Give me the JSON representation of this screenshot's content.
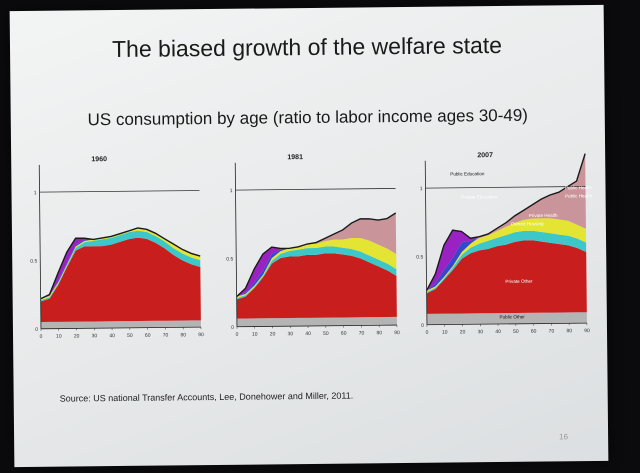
{
  "slide": {
    "title": "The biased growth of the welfare state",
    "subtitle": "US consumption by age (ratio to labor income ages 30-49)",
    "source": "Source: US national Transfer Accounts, Lee, Donehower and Miller, 2011.",
    "slide_number": "16"
  },
  "colors": {
    "public_other": "#b4b4b4",
    "private_other": "#c81e1e",
    "owned_housing": "#3ec7c9",
    "private_health": "#e4e432",
    "public_health": "#c9959a",
    "private_education": "#3448c8",
    "public_education": "#9a22c2",
    "reference_line": "#333333"
  },
  "chart_data": [
    {
      "type": "area",
      "title": "1960",
      "x": [
        0,
        5,
        10,
        15,
        20,
        25,
        30,
        35,
        40,
        45,
        50,
        55,
        60,
        65,
        70,
        75,
        80,
        85,
        90
      ],
      "xticks": [
        "0",
        "10",
        "20",
        "30",
        "40",
        "50",
        "60",
        "70",
        "80",
        "90"
      ],
      "yticks": [
        "0",
        "0.5",
        "1"
      ],
      "ylim": [
        0,
        1.2
      ],
      "reference_line": 1,
      "series": [
        {
          "key": "public_other",
          "values": [
            0.05,
            0.05,
            0.05,
            0.05,
            0.05,
            0.05,
            0.05,
            0.05,
            0.05,
            0.05,
            0.05,
            0.05,
            0.05,
            0.05,
            0.05,
            0.05,
            0.05,
            0.05,
            0.05
          ]
        },
        {
          "key": "private_other",
          "values": [
            0.15,
            0.17,
            0.27,
            0.4,
            0.52,
            0.55,
            0.55,
            0.55,
            0.56,
            0.58,
            0.6,
            0.61,
            0.6,
            0.57,
            0.53,
            0.48,
            0.44,
            0.41,
            0.39
          ]
        },
        {
          "key": "owned_housing",
          "values": [
            0.01,
            0.01,
            0.01,
            0.01,
            0.02,
            0.03,
            0.04,
            0.05,
            0.05,
            0.05,
            0.05,
            0.05,
            0.05,
            0.05,
            0.05,
            0.05,
            0.05,
            0.05,
            0.05
          ]
        },
        {
          "key": "private_health",
          "values": [
            0.01,
            0.01,
            0.01,
            0.01,
            0.01,
            0.01,
            0.01,
            0.01,
            0.01,
            0.01,
            0.01,
            0.02,
            0.02,
            0.02,
            0.02,
            0.03,
            0.03,
            0.03,
            0.03
          ]
        },
        {
          "key": "public_health",
          "values": [
            0,
            0,
            0,
            0,
            0,
            0,
            0,
            0,
            0,
            0,
            0,
            0,
            0,
            0,
            0,
            0,
            0,
            0,
            0
          ]
        },
        {
          "key": "private_education",
          "values": [
            0,
            0,
            0.01,
            0.01,
            0.01,
            0.01,
            0,
            0,
            0,
            0,
            0,
            0,
            0,
            0,
            0,
            0,
            0,
            0,
            0
          ]
        },
        {
          "key": "public_education",
          "values": [
            0,
            0.01,
            0.06,
            0.08,
            0.05,
            0.01,
            0,
            0,
            0,
            0,
            0,
            0,
            0,
            0,
            0,
            0,
            0,
            0,
            0
          ]
        }
      ],
      "annotations": []
    },
    {
      "type": "area",
      "title": "1981",
      "x": [
        0,
        5,
        10,
        15,
        20,
        25,
        30,
        35,
        40,
        45,
        50,
        55,
        60,
        65,
        70,
        75,
        80,
        85,
        90
      ],
      "xticks": [
        "0",
        "10",
        "20",
        "30",
        "40",
        "50",
        "60",
        "70",
        "80",
        "90"
      ],
      "yticks": [
        "0",
        "0.5",
        "1"
      ],
      "ylim": [
        0,
        1.2
      ],
      "reference_line": 1,
      "series": [
        {
          "key": "public_other",
          "values": [
            0.06,
            0.06,
            0.06,
            0.06,
            0.06,
            0.06,
            0.06,
            0.06,
            0.06,
            0.06,
            0.06,
            0.06,
            0.06,
            0.06,
            0.06,
            0.06,
            0.06,
            0.06,
            0.06
          ]
        },
        {
          "key": "private_other",
          "values": [
            0.14,
            0.16,
            0.22,
            0.3,
            0.4,
            0.44,
            0.45,
            0.45,
            0.46,
            0.46,
            0.47,
            0.47,
            0.46,
            0.45,
            0.43,
            0.4,
            0.37,
            0.34,
            0.3
          ]
        },
        {
          "key": "owned_housing",
          "values": [
            0.01,
            0.01,
            0.01,
            0.01,
            0.02,
            0.03,
            0.04,
            0.05,
            0.05,
            0.05,
            0.05,
            0.05,
            0.05,
            0.05,
            0.05,
            0.05,
            0.05,
            0.05,
            0.05
          ]
        },
        {
          "key": "private_health",
          "values": [
            0.01,
            0.01,
            0.01,
            0.01,
            0.02,
            0.02,
            0.02,
            0.02,
            0.03,
            0.03,
            0.04,
            0.05,
            0.06,
            0.08,
            0.1,
            0.11,
            0.11,
            0.11,
            0.11
          ]
        },
        {
          "key": "public_health",
          "values": [
            0,
            0,
            0,
            0,
            0,
            0,
            0,
            0,
            0,
            0.01,
            0.02,
            0.04,
            0.07,
            0.11,
            0.14,
            0.16,
            0.18,
            0.22,
            0.3
          ]
        },
        {
          "key": "private_education",
          "values": [
            0,
            0.01,
            0.02,
            0.03,
            0.03,
            0.01,
            0,
            0,
            0,
            0,
            0,
            0,
            0,
            0,
            0,
            0,
            0,
            0,
            0
          ]
        },
        {
          "key": "public_education",
          "values": [
            0,
            0.03,
            0.1,
            0.12,
            0.05,
            0.01,
            0,
            0,
            0,
            0,
            0,
            0,
            0,
            0,
            0,
            0,
            0,
            0,
            0
          ]
        }
      ],
      "annotations": []
    },
    {
      "type": "area",
      "title": "2007",
      "x": [
        0,
        5,
        10,
        15,
        20,
        25,
        30,
        35,
        40,
        45,
        50,
        55,
        60,
        65,
        70,
        75,
        80,
        85,
        90
      ],
      "xticks": [
        "0",
        "10",
        "20",
        "30",
        "40",
        "50",
        "60",
        "70",
        "80",
        "90"
      ],
      "yticks": [
        "0",
        "0.5",
        "1"
      ],
      "ylim": [
        0,
        1.2
      ],
      "reference_line": 1,
      "series": [
        {
          "key": "public_other",
          "values": [
            0.08,
            0.08,
            0.08,
            0.08,
            0.08,
            0.08,
            0.08,
            0.08,
            0.08,
            0.08,
            0.08,
            0.08,
            0.08,
            0.08,
            0.08,
            0.08,
            0.08,
            0.08,
            0.08
          ]
        },
        {
          "key": "private_other",
          "values": [
            0.15,
            0.18,
            0.25,
            0.32,
            0.4,
            0.44,
            0.46,
            0.47,
            0.49,
            0.5,
            0.52,
            0.53,
            0.53,
            0.52,
            0.51,
            0.5,
            0.49,
            0.47,
            0.44
          ]
        },
        {
          "key": "owned_housing",
          "values": [
            0.01,
            0.01,
            0.01,
            0.02,
            0.03,
            0.04,
            0.05,
            0.06,
            0.06,
            0.07,
            0.07,
            0.07,
            0.07,
            0.07,
            0.07,
            0.07,
            0.07,
            0.07,
            0.07
          ]
        },
        {
          "key": "private_health",
          "values": [
            0.01,
            0.01,
            0.01,
            0.01,
            0.02,
            0.03,
            0.04,
            0.04,
            0.05,
            0.06,
            0.07,
            0.08,
            0.09,
            0.1,
            0.11,
            0.11,
            0.11,
            0.1,
            0.1
          ]
        },
        {
          "key": "public_health",
          "values": [
            0,
            0,
            0,
            0,
            0,
            0,
            0.01,
            0.01,
            0.02,
            0.03,
            0.05,
            0.07,
            0.1,
            0.14,
            0.17,
            0.2,
            0.25,
            0.32,
            0.55
          ]
        },
        {
          "key": "private_education",
          "values": [
            0,
            0.02,
            0.05,
            0.06,
            0.07,
            0.02,
            0,
            0,
            0,
            0,
            0,
            0,
            0,
            0,
            0,
            0,
            0,
            0,
            0
          ]
        },
        {
          "key": "public_education",
          "values": [
            0,
            0.07,
            0.18,
            0.2,
            0.08,
            0.02,
            0,
            0,
            0,
            0,
            0,
            0,
            0,
            0,
            0,
            0,
            0,
            0,
            0
          ]
        }
      ],
      "annotations": [
        {
          "text": "Public Education",
          "x": 14,
          "y": 1.09,
          "anchor": "start",
          "color": "#111111"
        },
        {
          "text": "Private Education",
          "x": 20,
          "y": 0.92,
          "anchor": "start",
          "color": "#ffffff"
        },
        {
          "text": "Public Health",
          "x": 86,
          "y": 0.98,
          "anchor": "middle",
          "color": "#ffffff"
        },
        {
          "text": "Public Health",
          "x": 86,
          "y": 0.92,
          "anchor": "middle",
          "color": "#ffffff"
        },
        {
          "text": "Private Health",
          "x": 66,
          "y": 0.78,
          "anchor": "middle",
          "color": "#ffffff"
        },
        {
          "text": "Owned Housing",
          "x": 57,
          "y": 0.72,
          "anchor": "middle",
          "color": "#ffffff"
        },
        {
          "text": "Private Other",
          "x": 52,
          "y": 0.3,
          "anchor": "middle",
          "color": "#ffffff"
        },
        {
          "text": "Public Other",
          "x": 48,
          "y": 0.04,
          "anchor": "middle",
          "color": "#111111"
        }
      ]
    }
  ]
}
